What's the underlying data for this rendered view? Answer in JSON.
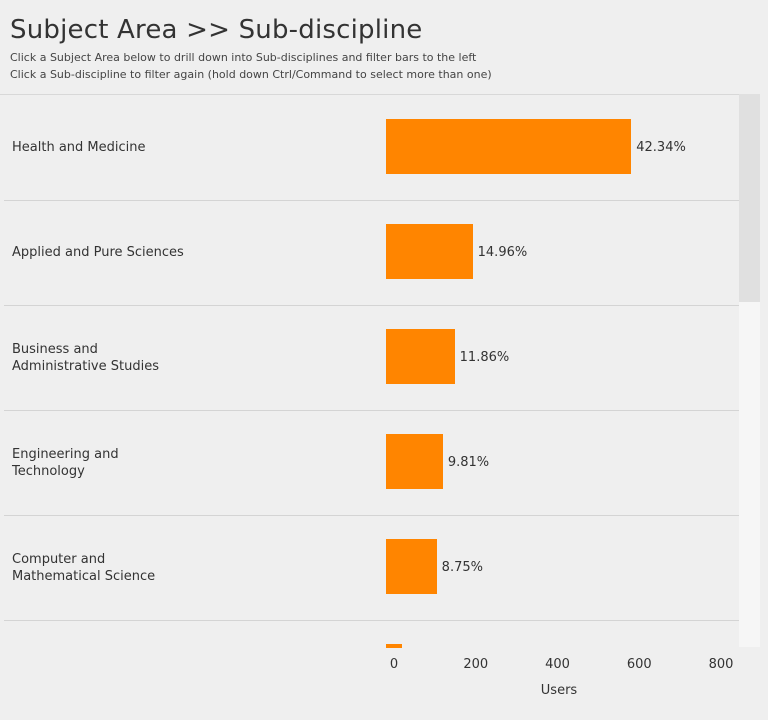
{
  "header": {
    "title": "Subject Area >> Sub-discipline",
    "subtitle_1": "Click a Subject Area below to drill down into Sub-disciplines and filter bars to the left",
    "subtitle_2": "Click a Sub-discipline to filter again (hold down Ctrl/Command to select more than one)"
  },
  "colors": {
    "bar": "#ff8500",
    "background": "#efefef"
  },
  "chart_data": {
    "type": "bar",
    "orientation": "horizontal",
    "categories": [
      "Health and Medicine",
      "Applied and Pure Sciences",
      "Business and\nAdministrative Studies",
      "Engineering and\nTechnology",
      "Computer and\nMathematical Science",
      ""
    ],
    "values": [
      600,
      212,
      168,
      139,
      124,
      38
    ],
    "data_labels": [
      "42.34%",
      "14.96%",
      "11.86%",
      "9.81%",
      "8.75%",
      ""
    ],
    "xlabel": "Users",
    "xlim": [
      0,
      800
    ],
    "xticks": [
      "0",
      "200",
      "400",
      "600",
      "800"
    ],
    "grid": false,
    "legend": "none"
  }
}
